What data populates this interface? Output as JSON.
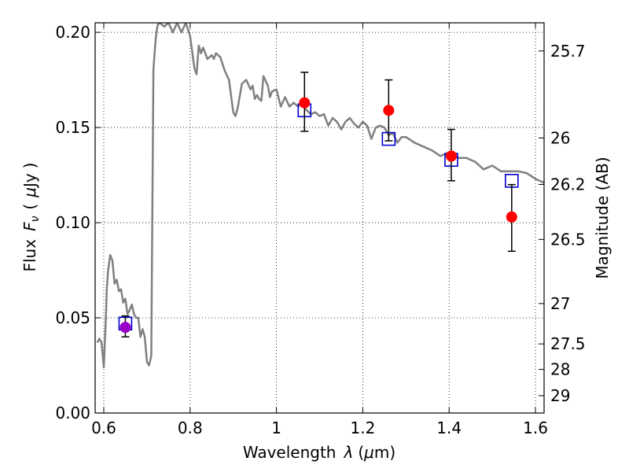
{
  "chart_data": {
    "type": "scatter",
    "xlabel": "Wavelength  λ (μm)",
    "ylabel": "Flux  F_ν  ( μJy )",
    "ylabel_parts": {
      "flux": "Flux",
      "f": "F",
      "nu": "ν",
      "open": "(",
      "mu": "μ",
      "unit": "Jy",
      "close": ")"
    },
    "xlabel_parts": {
      "text": "Wavelength",
      "lambda": "λ",
      "open": "(",
      "mu": "μ",
      "unit": "m",
      "close": ")"
    },
    "y2label": "Magnitude (AB)",
    "xlim": [
      0.58,
      1.62
    ],
    "ylim": [
      0.0,
      0.205
    ],
    "grid": true,
    "x_ticks": [
      0.6,
      0.8,
      1.0,
      1.2,
      1.4,
      1.6
    ],
    "x_tick_labels": [
      "0.6",
      "0.8",
      "1",
      "1.2",
      "1.4",
      "1.6"
    ],
    "y_ticks": [
      0.0,
      0.05,
      0.1,
      0.15,
      0.2
    ],
    "y_tick_labels": [
      "0.00",
      "0.05",
      "0.10",
      "0.15",
      "0.20"
    ],
    "y2_ticks": [
      {
        "label": "25.7",
        "flux": 0.1902
      },
      {
        "label": "26",
        "flux": 0.1445
      },
      {
        "label": "26.2",
        "flux": 0.1201
      },
      {
        "label": "26.5",
        "flux": 0.0912
      },
      {
        "label": "27",
        "flux": 0.0575
      },
      {
        "label": "27.5",
        "flux": 0.0363
      },
      {
        "label": "28",
        "flux": 0.0229
      },
      {
        "label": "29",
        "flux": 0.0091
      }
    ],
    "series": [
      {
        "kind": "line",
        "color": "#808080",
        "x": [
          0.585,
          0.59,
          0.595,
          0.6,
          0.605,
          0.607,
          0.61,
          0.615,
          0.62,
          0.625,
          0.63,
          0.635,
          0.64,
          0.645,
          0.65,
          0.655,
          0.66,
          0.665,
          0.67,
          0.675,
          0.68,
          0.685,
          0.69,
          0.695,
          0.7,
          0.705,
          0.71,
          0.715,
          0.718,
          0.72,
          0.722,
          0.725,
          0.73,
          0.74,
          0.75,
          0.76,
          0.77,
          0.78,
          0.79,
          0.8,
          0.81,
          0.815,
          0.82,
          0.825,
          0.83,
          0.84,
          0.85,
          0.855,
          0.86,
          0.87,
          0.88,
          0.89,
          0.9,
          0.905,
          0.91,
          0.92,
          0.93,
          0.94,
          0.945,
          0.95,
          0.955,
          0.96,
          0.965,
          0.97,
          0.98,
          0.985,
          0.99,
          1.0,
          1.01,
          1.02,
          1.03,
          1.04,
          1.05,
          1.06,
          1.07,
          1.08,
          1.09,
          1.1,
          1.11,
          1.12,
          1.13,
          1.14,
          1.15,
          1.16,
          1.17,
          1.18,
          1.19,
          1.2,
          1.21,
          1.22,
          1.23,
          1.24,
          1.25,
          1.26,
          1.27,
          1.28,
          1.29,
          1.3,
          1.32,
          1.34,
          1.36,
          1.38,
          1.4,
          1.42,
          1.44,
          1.46,
          1.48,
          1.5,
          1.52,
          1.54,
          1.56,
          1.58,
          1.6,
          1.62
        ],
        "y": [
          0.037,
          0.039,
          0.037,
          0.024,
          0.05,
          0.065,
          0.075,
          0.083,
          0.08,
          0.068,
          0.07,
          0.064,
          0.065,
          0.058,
          0.06,
          0.052,
          0.054,
          0.057,
          0.052,
          0.05,
          0.05,
          0.04,
          0.044,
          0.04,
          0.027,
          0.025,
          0.03,
          0.18,
          0.19,
          0.196,
          0.2,
          0.204,
          0.205,
          0.203,
          0.205,
          0.2,
          0.205,
          0.2,
          0.205,
          0.198,
          0.181,
          0.178,
          0.193,
          0.189,
          0.192,
          0.186,
          0.188,
          0.186,
          0.189,
          0.187,
          0.18,
          0.175,
          0.158,
          0.156,
          0.16,
          0.173,
          0.175,
          0.17,
          0.172,
          0.165,
          0.167,
          0.165,
          0.164,
          0.177,
          0.172,
          0.166,
          0.169,
          0.17,
          0.161,
          0.166,
          0.161,
          0.163,
          0.161,
          0.163,
          0.159,
          0.157,
          0.158,
          0.156,
          0.157,
          0.151,
          0.155,
          0.153,
          0.149,
          0.153,
          0.155,
          0.152,
          0.15,
          0.153,
          0.151,
          0.144,
          0.15,
          0.151,
          0.15,
          0.146,
          0.147,
          0.142,
          0.145,
          0.145,
          0.142,
          0.14,
          0.138,
          0.135,
          0.137,
          0.134,
          0.134,
          0.132,
          0.128,
          0.13,
          0.127,
          0.127,
          0.127,
          0.126,
          0.123,
          0.121
        ]
      },
      {
        "kind": "squares",
        "color": "#0000cc",
        "x": [
          0.65,
          1.065,
          1.26,
          1.405,
          1.545
        ],
        "y": [
          0.047,
          0.159,
          0.144,
          0.133,
          0.122
        ]
      },
      {
        "kind": "points",
        "x": [
          0.65,
          1.065,
          1.26,
          1.405,
          1.545
        ],
        "y": [
          0.045,
          0.163,
          0.159,
          0.135,
          0.103
        ],
        "yerr_low": [
          0.04,
          0.148,
          0.143,
          0.122,
          0.085
        ],
        "yerr_high": [
          0.051,
          0.179,
          0.175,
          0.149,
          0.12
        ],
        "colors": [
          "#9b00c8",
          "#ff0000",
          "#ff0000",
          "#ff0000",
          "#ff0000"
        ]
      }
    ]
  }
}
